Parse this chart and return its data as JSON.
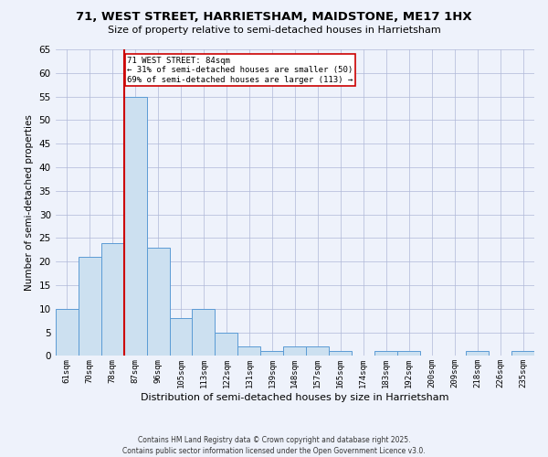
{
  "title": "71, WEST STREET, HARRIETSHAM, MAIDSTONE, ME17 1HX",
  "subtitle": "Size of property relative to semi-detached houses in Harrietsham",
  "xlabel": "Distribution of semi-detached houses by size in Harrietsham",
  "ylabel": "Number of semi-detached properties",
  "categories": [
    "61sqm",
    "70sqm",
    "78sqm",
    "87sqm",
    "96sqm",
    "105sqm",
    "113sqm",
    "122sqm",
    "131sqm",
    "139sqm",
    "148sqm",
    "157sqm",
    "165sqm",
    "174sqm",
    "183sqm",
    "192sqm",
    "200sqm",
    "209sqm",
    "218sqm",
    "226sqm",
    "235sqm"
  ],
  "values": [
    10,
    21,
    24,
    55,
    23,
    8,
    10,
    5,
    2,
    1,
    2,
    2,
    1,
    0,
    1,
    1,
    0,
    0,
    1,
    0,
    1
  ],
  "bar_color": "#cce0f0",
  "bar_edge_color": "#5b9bd5",
  "ref_line_index": 3,
  "ref_label": "71 WEST STREET: 84sqm",
  "ref_pct_smaller": "31% of semi-detached houses are smaller (50)",
  "ref_pct_larger": "69% of semi-detached houses are larger (113)",
  "annotation_box_color": "#cc0000",
  "background_color": "#eef2fb",
  "grid_color": "#b0b8d8",
  "footer": "Contains HM Land Registry data © Crown copyright and database right 2025.\nContains public sector information licensed under the Open Government Licence v3.0.",
  "ylim": [
    0,
    65
  ],
  "yticks": [
    0,
    5,
    10,
    15,
    20,
    25,
    30,
    35,
    40,
    45,
    50,
    55,
    60,
    65
  ]
}
